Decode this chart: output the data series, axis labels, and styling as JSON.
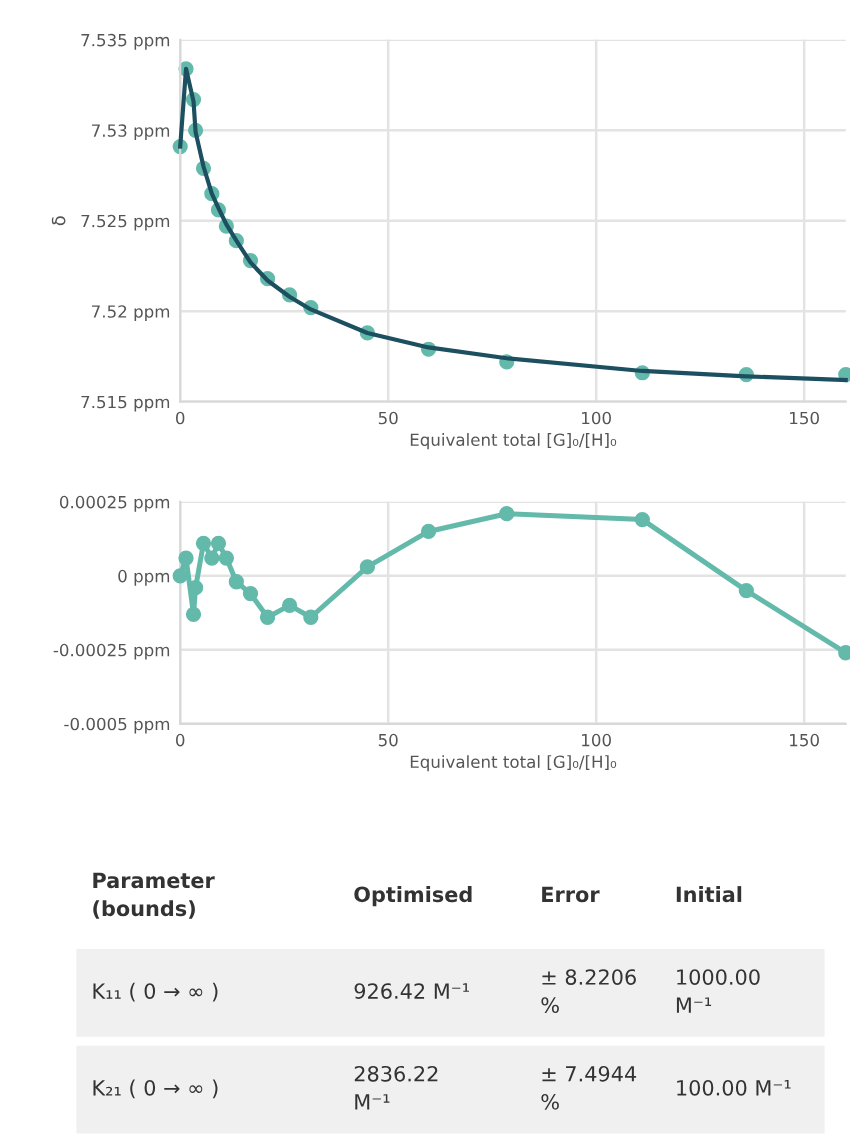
{
  "chart_data": [
    {
      "type": "scatter",
      "ylabel": "δ",
      "xlabel": "Equivalent total [G]₀/[H]₀",
      "xlim": [
        0,
        160
      ],
      "xticks": [
        0,
        50,
        100,
        150
      ],
      "ylim": [
        7.515,
        7.535
      ],
      "yticks": [
        {
          "value": 7.515,
          "label": "7.515 ppm"
        },
        {
          "value": 7.52,
          "label": "7.52 ppm"
        },
        {
          "value": 7.525,
          "label": "7.525 ppm"
        },
        {
          "value": 7.53,
          "label": "7.53 ppm"
        },
        {
          "value": 7.535,
          "label": "7.535 ppm"
        }
      ],
      "grid": true,
      "x": [
        0,
        1.4,
        3.2,
        3.7,
        5.6,
        7.6,
        9.2,
        11.1,
        13.5,
        16.9,
        21,
        26.3,
        31.4,
        45,
        59.7,
        78.5,
        111.1,
        136.1,
        160
      ],
      "series": [
        {
          "type": "scatter",
          "color": "#63b9aa",
          "marker": "circle",
          "values": [
            7.5291,
            7.5334,
            7.5317,
            7.53,
            7.5279,
            7.5265,
            7.5256,
            7.5247,
            7.5239,
            7.5228,
            7.5218,
            7.5209,
            7.5202,
            7.5188,
            7.5179,
            7.5172,
            7.5166,
            7.5165,
            7.5165
          ]
        },
        {
          "type": "line",
          "color": "#1c4f5f",
          "marker": "none",
          "values": [
            7.5291,
            7.5334,
            7.5316,
            7.5299,
            7.528,
            7.5265,
            7.5257,
            7.5248,
            7.5239,
            7.5227,
            7.5217,
            7.5208,
            7.5201,
            7.5188,
            7.518,
            7.5174,
            7.5167,
            7.5164,
            7.5162
          ]
        }
      ]
    },
    {
      "type": "line",
      "xlabel": "Equivalent total [G]₀/[H]₀",
      "xlim": [
        0,
        160
      ],
      "xticks": [
        0,
        50,
        100,
        150
      ],
      "ylim": [
        -0.0005,
        0.00025
      ],
      "yticks": [
        {
          "value": -0.0005,
          "label": "-0.0005 ppm"
        },
        {
          "value": -0.00025,
          "label": "-0.00025 ppm"
        },
        {
          "value": 0,
          "label": "0 ppm"
        },
        {
          "value": 0.00025,
          "label": "0.00025 ppm"
        }
      ],
      "grid": true,
      "x": [
        0,
        1.4,
        3.2,
        3.7,
        5.6,
        7.6,
        9.2,
        11.1,
        13.5,
        16.9,
        21,
        26.3,
        31.4,
        45,
        59.7,
        78.5,
        111.1,
        136.1,
        160
      ],
      "series": [
        {
          "type": "line",
          "color": "#63b9aa",
          "marker": "circle",
          "values": [
            0,
            6e-05,
            -0.00013,
            -4e-05,
            0.00011,
            6e-05,
            0.00011,
            6e-05,
            -2e-05,
            -6e-05,
            -0.00014,
            -0.0001,
            -0.00014,
            3e-05,
            0.00015,
            0.00021,
            0.00019,
            -5e-05,
            -0.00026
          ]
        }
      ]
    },
    {
      "type": "other",
      "annotations": [
        "Parameter\n(bounds)",
        "Optimised",
        "Error",
        "Initial",
        "K₁₁ ( 0 → ∞ )",
        "926.42 M⁻¹",
        "± 8.2206\n%",
        "1000.00\nM⁻¹",
        "K₂₁ ( 0 → ∞ )",
        "2836.22\nM⁻¹",
        "± 7.4944\n%",
        "100.00 M⁻¹"
      ]
    }
  ]
}
